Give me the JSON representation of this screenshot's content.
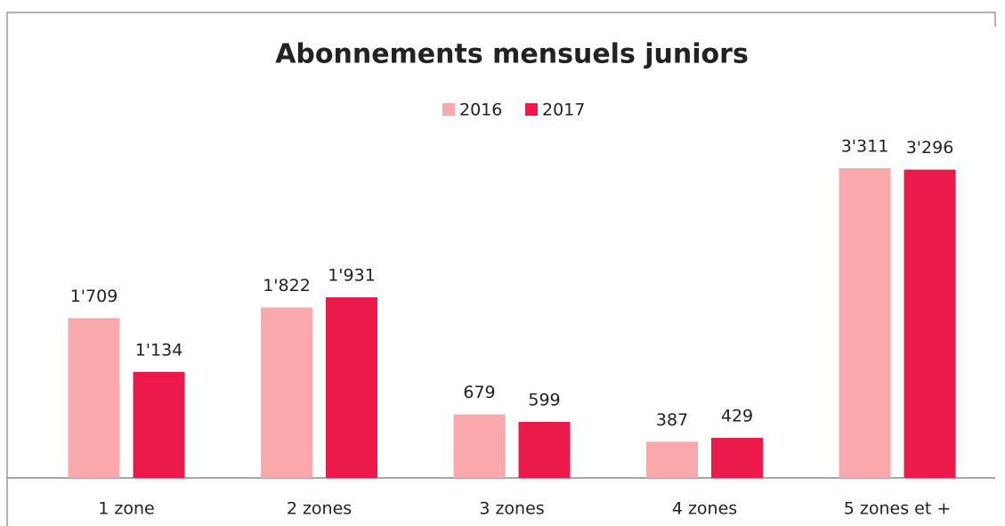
{
  "chart_data": {
    "type": "bar",
    "title": "Abonnements mensuels juniors",
    "categories": [
      "1 zone",
      "2 zones",
      "3 zones",
      "4 zones",
      "5 zones et +"
    ],
    "series": [
      {
        "name": "2016",
        "color": "#f9a8ab",
        "values": [
          1709,
          1822,
          679,
          387,
          3311
        ],
        "value_labels": [
          "1'709",
          "1'822",
          "679",
          "387",
          "3'311"
        ]
      },
      {
        "name": "2017",
        "color": "#ec1a4b",
        "values": [
          1134,
          1931,
          599,
          429,
          3296
        ],
        "value_labels": [
          "1'134",
          "1'931",
          "599",
          "429",
          "3'296"
        ]
      }
    ]
  }
}
